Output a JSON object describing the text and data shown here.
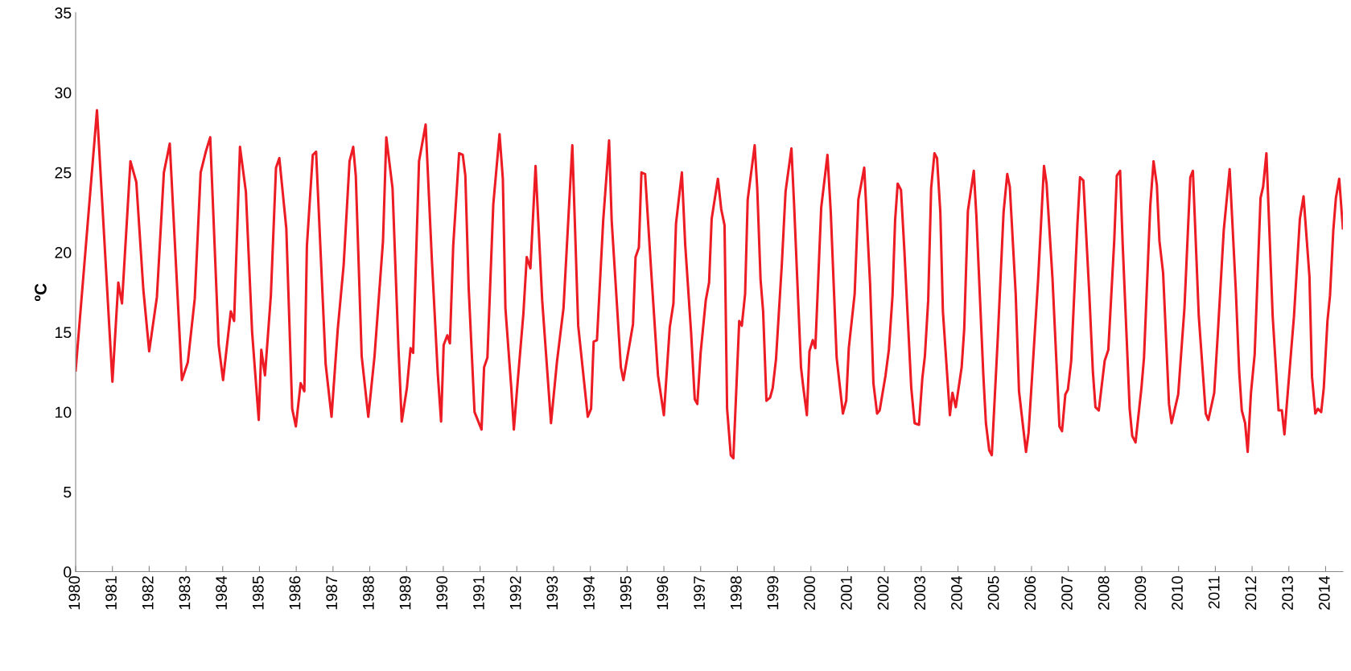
{
  "chart_data": {
    "type": "line",
    "ylabel": "ºC",
    "xlim": [
      1980,
      2014.47
    ],
    "ylim": [
      0,
      35
    ],
    "xticks": [
      1980,
      1981,
      1982,
      1983,
      1984,
      1985,
      1986,
      1987,
      1988,
      1989,
      1990,
      1991,
      1992,
      1993,
      1994,
      1995,
      1996,
      1997,
      1998,
      1999,
      2000,
      2001,
      2002,
      2003,
      2004,
      2005,
      2006,
      2007,
      2008,
      2009,
      2010,
      2011,
      2012,
      2013,
      2014
    ],
    "yticks": [
      0,
      5,
      10,
      15,
      20,
      25,
      30,
      35
    ],
    "grid": false,
    "marker": "none",
    "line_style": "solid",
    "series": [
      {
        "color": "#ed1c24",
        "x": [
          1980.0,
          1980.58,
          1981.0,
          1981.16,
          1981.26,
          1981.49,
          1981.65,
          1981.84,
          1982.0,
          1982.21,
          1982.4,
          1982.56,
          1982.89,
          1983.05,
          1983.24,
          1983.4,
          1983.54,
          1983.66,
          1983.89,
          1984.01,
          1984.22,
          1984.31,
          1984.47,
          1984.63,
          1984.8,
          1984.98,
          1985.05,
          1985.15,
          1985.31,
          1985.45,
          1985.54,
          1985.73,
          1985.89,
          1985.99,
          1986.12,
          1986.22,
          1986.29,
          1986.45,
          1986.54,
          1986.8,
          1986.96,
          1987.13,
          1987.29,
          1987.45,
          1987.55,
          1987.62,
          1987.78,
          1987.96,
          1988.13,
          1988.36,
          1988.45,
          1988.62,
          1988.78,
          1988.87,
          1989.01,
          1989.11,
          1989.18,
          1989.34,
          1989.52,
          1989.69,
          1989.85,
          1989.94,
          1990.01,
          1990.11,
          1990.18,
          1990.27,
          1990.43,
          1990.53,
          1990.6,
          1990.69,
          1990.85,
          1991.04,
          1991.11,
          1991.2,
          1991.36,
          1991.53,
          1991.62,
          1991.69,
          1991.85,
          1991.92,
          1992.02,
          1992.18,
          1992.27,
          1992.37,
          1992.51,
          1992.69,
          1992.93,
          1993.09,
          1993.27,
          1993.51,
          1993.67,
          1993.93,
          1994.02,
          1994.09,
          1994.18,
          1994.35,
          1994.51,
          1994.58,
          1994.83,
          1994.9,
          1995.16,
          1995.23,
          1995.32,
          1995.39,
          1995.49,
          1995.65,
          1995.84,
          1996.0,
          1996.16,
          1996.26,
          1996.33,
          1996.49,
          1996.58,
          1996.74,
          1996.84,
          1996.91,
          1997.0,
          1997.14,
          1997.23,
          1997.3,
          1997.47,
          1997.56,
          1997.65,
          1997.72,
          1997.82,
          1997.89,
          1998.05,
          1998.12,
          1998.21,
          1998.28,
          1998.47,
          1998.54,
          1998.63,
          1998.7,
          1998.79,
          1998.89,
          1998.96,
          1999.05,
          1999.21,
          1999.31,
          1999.47,
          1999.54,
          1999.73,
          1999.79,
          1999.89,
          1999.96,
          2000.05,
          2000.12,
          2000.28,
          2000.45,
          2000.54,
          2000.7,
          2000.87,
          2000.96,
          2001.03,
          2001.19,
          2001.29,
          2001.45,
          2001.61,
          2001.7,
          2001.8,
          2001.87,
          2002.03,
          2002.12,
          2002.22,
          2002.29,
          2002.36,
          2002.45,
          2002.54,
          2002.73,
          2002.82,
          2002.94,
          2003.03,
          2003.1,
          2003.19,
          2003.27,
          2003.36,
          2003.43,
          2003.52,
          2003.59,
          2003.78,
          2003.85,
          2003.94,
          2004.1,
          2004.17,
          2004.27,
          2004.43,
          2004.5,
          2004.69,
          2004.76,
          2004.85,
          2004.92,
          2005.08,
          2005.24,
          2005.34,
          2005.41,
          2005.57,
          2005.66,
          2005.85,
          2005.92,
          2006.01,
          2006.18,
          2006.34,
          2006.41,
          2006.57,
          2006.76,
          2006.83,
          2006.92,
          2006.99,
          2007.08,
          2007.25,
          2007.32,
          2007.41,
          2007.57,
          2007.67,
          2007.74,
          2007.83,
          2007.99,
          2008.09,
          2008.25,
          2008.32,
          2008.41,
          2008.48,
          2008.67,
          2008.74,
          2008.83,
          2008.99,
          2009.06,
          2009.23,
          2009.32,
          2009.41,
          2009.48,
          2009.58,
          2009.74,
          2009.81,
          2009.99,
          2010.16,
          2010.32,
          2010.39,
          2010.55,
          2010.74,
          2010.81,
          2010.97,
          2011.07,
          2011.23,
          2011.39,
          2011.56,
          2011.65,
          2011.72,
          2011.81,
          2011.88,
          2011.97,
          2012.07,
          2012.23,
          2012.3,
          2012.39,
          2012.56,
          2012.72,
          2012.81,
          2012.88,
          2012.98,
          2013.14,
          2013.3,
          2013.4,
          2013.56,
          2013.63,
          2013.72,
          2013.79,
          2013.88,
          2013.95,
          2014.05,
          2014.12,
          2014.21,
          2014.28,
          2014.37,
          2014.47
        ],
        "values": [
          12.6,
          28.9,
          11.9,
          18.1,
          16.8,
          25.7,
          24.4,
          17.7,
          13.8,
          17.2,
          25.0,
          26.8,
          12.0,
          13.1,
          17.1,
          25.0,
          26.3,
          27.2,
          14.2,
          12.0,
          16.3,
          15.7,
          26.6,
          23.8,
          15.0,
          9.5,
          13.9,
          12.3,
          17.3,
          25.3,
          25.9,
          21.5,
          10.2,
          9.1,
          11.8,
          11.3,
          20.4,
          26.1,
          26.3,
          13.0,
          9.7,
          15.2,
          19.2,
          25.7,
          26.6,
          24.8,
          13.5,
          9.7,
          13.5,
          20.7,
          27.2,
          24.0,
          14.0,
          9.4,
          11.5,
          14.0,
          13.7,
          25.7,
          28.0,
          19.5,
          12.4,
          9.4,
          14.2,
          14.8,
          14.3,
          20.4,
          26.2,
          26.1,
          24.8,
          17.8,
          10.0,
          8.9,
          12.8,
          13.4,
          23.0,
          27.4,
          24.6,
          16.5,
          11.5,
          8.9,
          11.8,
          16.2,
          19.7,
          19.0,
          25.4,
          17.0,
          9.3,
          13.1,
          16.5,
          26.7,
          15.4,
          9.7,
          10.2,
          14.4,
          14.5,
          22.0,
          27.0,
          22.0,
          12.8,
          12.0,
          15.5,
          19.7,
          20.3,
          25.0,
          24.9,
          19.0,
          12.3,
          9.8,
          15.3,
          16.8,
          21.8,
          25.0,
          20.5,
          15.0,
          10.8,
          10.5,
          13.7,
          17.0,
          18.1,
          22.1,
          24.6,
          22.7,
          21.7,
          10.2,
          7.3,
          7.1,
          15.7,
          15.4,
          17.4,
          23.3,
          26.7,
          24.0,
          18.3,
          16.3,
          10.7,
          10.9,
          11.5,
          13.3,
          19.3,
          23.8,
          26.5,
          23.1,
          12.8,
          11.6,
          9.8,
          13.8,
          14.5,
          14.0,
          22.8,
          26.1,
          22.5,
          13.4,
          9.9,
          10.7,
          14.0,
          17.4,
          23.3,
          25.3,
          18.0,
          11.8,
          9.9,
          10.1,
          12.3,
          13.9,
          17.3,
          22.0,
          24.3,
          23.9,
          20.2,
          11.5,
          9.3,
          9.2,
          12.1,
          13.5,
          17.0,
          24.0,
          26.2,
          25.9,
          22.5,
          16.3,
          9.8,
          11.2,
          10.3,
          12.8,
          15.2,
          22.6,
          25.1,
          22.3,
          12.3,
          9.3,
          7.6,
          7.3,
          14.5,
          22.5,
          24.9,
          24.1,
          17.4,
          11.3,
          7.5,
          8.7,
          12.0,
          18.3,
          25.4,
          24.3,
          18.4,
          9.1,
          8.8,
          11.1,
          11.4,
          13.2,
          21.8,
          24.7,
          24.5,
          17.5,
          12.5,
          10.3,
          10.1,
          13.2,
          13.9,
          20.7,
          24.8,
          25.1,
          20.5,
          10.2,
          8.5,
          8.1,
          11.5,
          13.4,
          22.9,
          25.7,
          24.2,
          20.7,
          18.7,
          10.5,
          9.3,
          11.1,
          16.5,
          24.7,
          25.1,
          16.0,
          9.9,
          9.5,
          11.2,
          15.0,
          21.4,
          25.2,
          17.5,
          12.5,
          10.1,
          9.3,
          7.5,
          11.2,
          13.6,
          23.4,
          24.1,
          26.2,
          16.0,
          10.1,
          10.1,
          8.6,
          11.5,
          16.0,
          22.1,
          23.5,
          18.5,
          12.2,
          9.9,
          10.2,
          10.0,
          11.5,
          15.7,
          17.3,
          21.4,
          23.4,
          24.6,
          21.5
        ]
      }
    ]
  }
}
